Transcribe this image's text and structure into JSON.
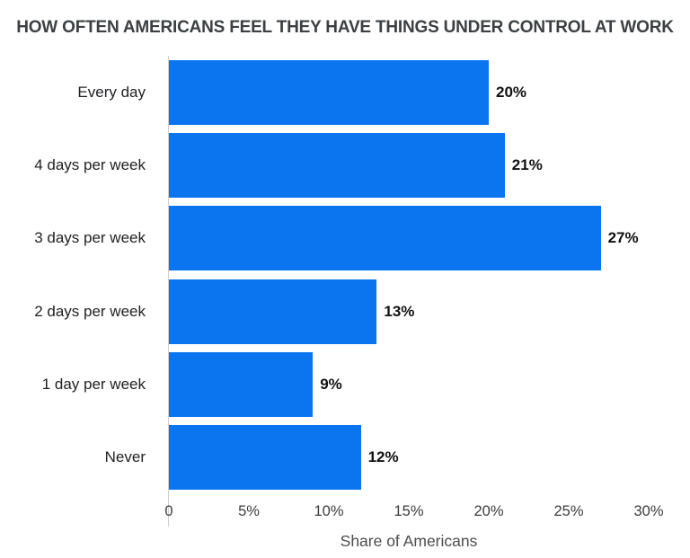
{
  "title": "HOW OFTEN AMERICANS FEEL THEY HAVE THINGS UNDER CONTROL AT WORK",
  "chart_data": {
    "type": "bar",
    "orientation": "horizontal",
    "title": "HOW OFTEN AMERICANS FEEL THEY HAVE THINGS UNDER CONTROL AT WORK",
    "categories": [
      "Every day",
      "4 days per week",
      "3 days per week",
      "2 days per week",
      "1 day per week",
      "Never"
    ],
    "values": [
      20,
      21,
      27,
      13,
      9,
      12
    ],
    "value_labels": [
      "20%",
      "21%",
      "27%",
      "13%",
      "9%",
      "12%"
    ],
    "xlabel": "Share of Americans",
    "xticks": [
      "0",
      "5%",
      "10%",
      "15%",
      "20%",
      "25%",
      "30%"
    ],
    "xlim": [
      0,
      30
    ],
    "grid": false,
    "legend": false,
    "bar_color": "#0b75f0",
    "background_color": "#ffffff",
    "title_color": "#3c4043",
    "value_label_color": "#111111",
    "axis_line_color": "#cfcfcf"
  }
}
